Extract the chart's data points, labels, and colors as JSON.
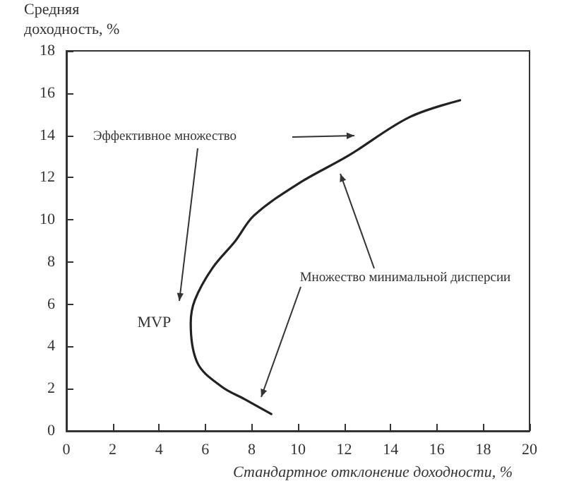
{
  "chart_data": {
    "type": "line",
    "xlabel": "Стандартное отклонение доходности, %",
    "ylabel": "Средняя доходность, %",
    "x": [
      8.85,
      7.7,
      6.7,
      5.67,
      5.37,
      5.55,
      6.3,
      7.3,
      8.1,
      10.0,
      12.2,
      14.8,
      17.0
    ],
    "series": [
      {
        "color": "#222222",
        "values": [
          0.8,
          1.5,
          2.1,
          3.2,
          5.1,
          6.2,
          7.7,
          9.0,
          10.2,
          11.7,
          13.05,
          14.85,
          15.66
        ]
      }
    ],
    "xlim": [
      0,
      20
    ],
    "xticks": [
      0,
      2,
      4,
      6,
      8,
      10,
      12,
      14,
      16,
      18,
      20
    ],
    "ylim": [
      0,
      18
    ],
    "yticks": [
      0,
      2,
      4,
      6,
      8,
      10,
      12,
      14,
      16,
      18
    ],
    "annotations": [
      "Эффективное множество",
      {
        "text": "MVP",
        "x": 5.37,
        "y": 5.1
      },
      "Множество минимальной дисперсии"
    ],
    "grid": false,
    "marker": "none",
    "line_style": "solid"
  }
}
